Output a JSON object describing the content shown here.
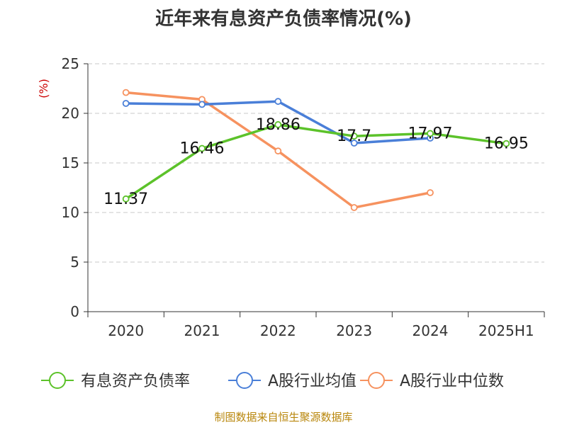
{
  "page_title": "近年来有息资产负债率情况(%)",
  "source_text": "制图数据来自恒生聚源数据库",
  "colors": {
    "series_debt": "#5cc22a",
    "series_avg": "#4a7fd8",
    "series_median": "#f6925f",
    "axis": "#333333",
    "grid": "#c8c8c8",
    "unit": "#cc0000"
  },
  "chart_data": {
    "type": "line",
    "title": "近年来有息资产负债率情况(%)",
    "ylabel": "(%)",
    "xlabel": "",
    "categories": [
      "2020",
      "2021",
      "2022",
      "2023",
      "2024",
      "2025H1"
    ],
    "ylim": [
      0,
      25
    ],
    "yticks": [
      0,
      5,
      10,
      15,
      20,
      25
    ],
    "grid": true,
    "legend_position": "bottom",
    "series": [
      {
        "name": "有息资产负债率",
        "key": "debt",
        "values": [
          11.37,
          16.46,
          18.86,
          17.7,
          17.97,
          16.95
        ],
        "labels": [
          "11.37",
          "16.46",
          "18.86",
          "17.7",
          "17.97",
          "16.95"
        ]
      },
      {
        "name": "A股行业均值",
        "key": "avg",
        "values": [
          21.0,
          20.9,
          21.2,
          17.0,
          17.5,
          null
        ]
      },
      {
        "name": "A股行业中位数",
        "key": "median",
        "values": [
          22.1,
          21.4,
          16.2,
          10.5,
          12.0,
          null
        ]
      }
    ]
  }
}
